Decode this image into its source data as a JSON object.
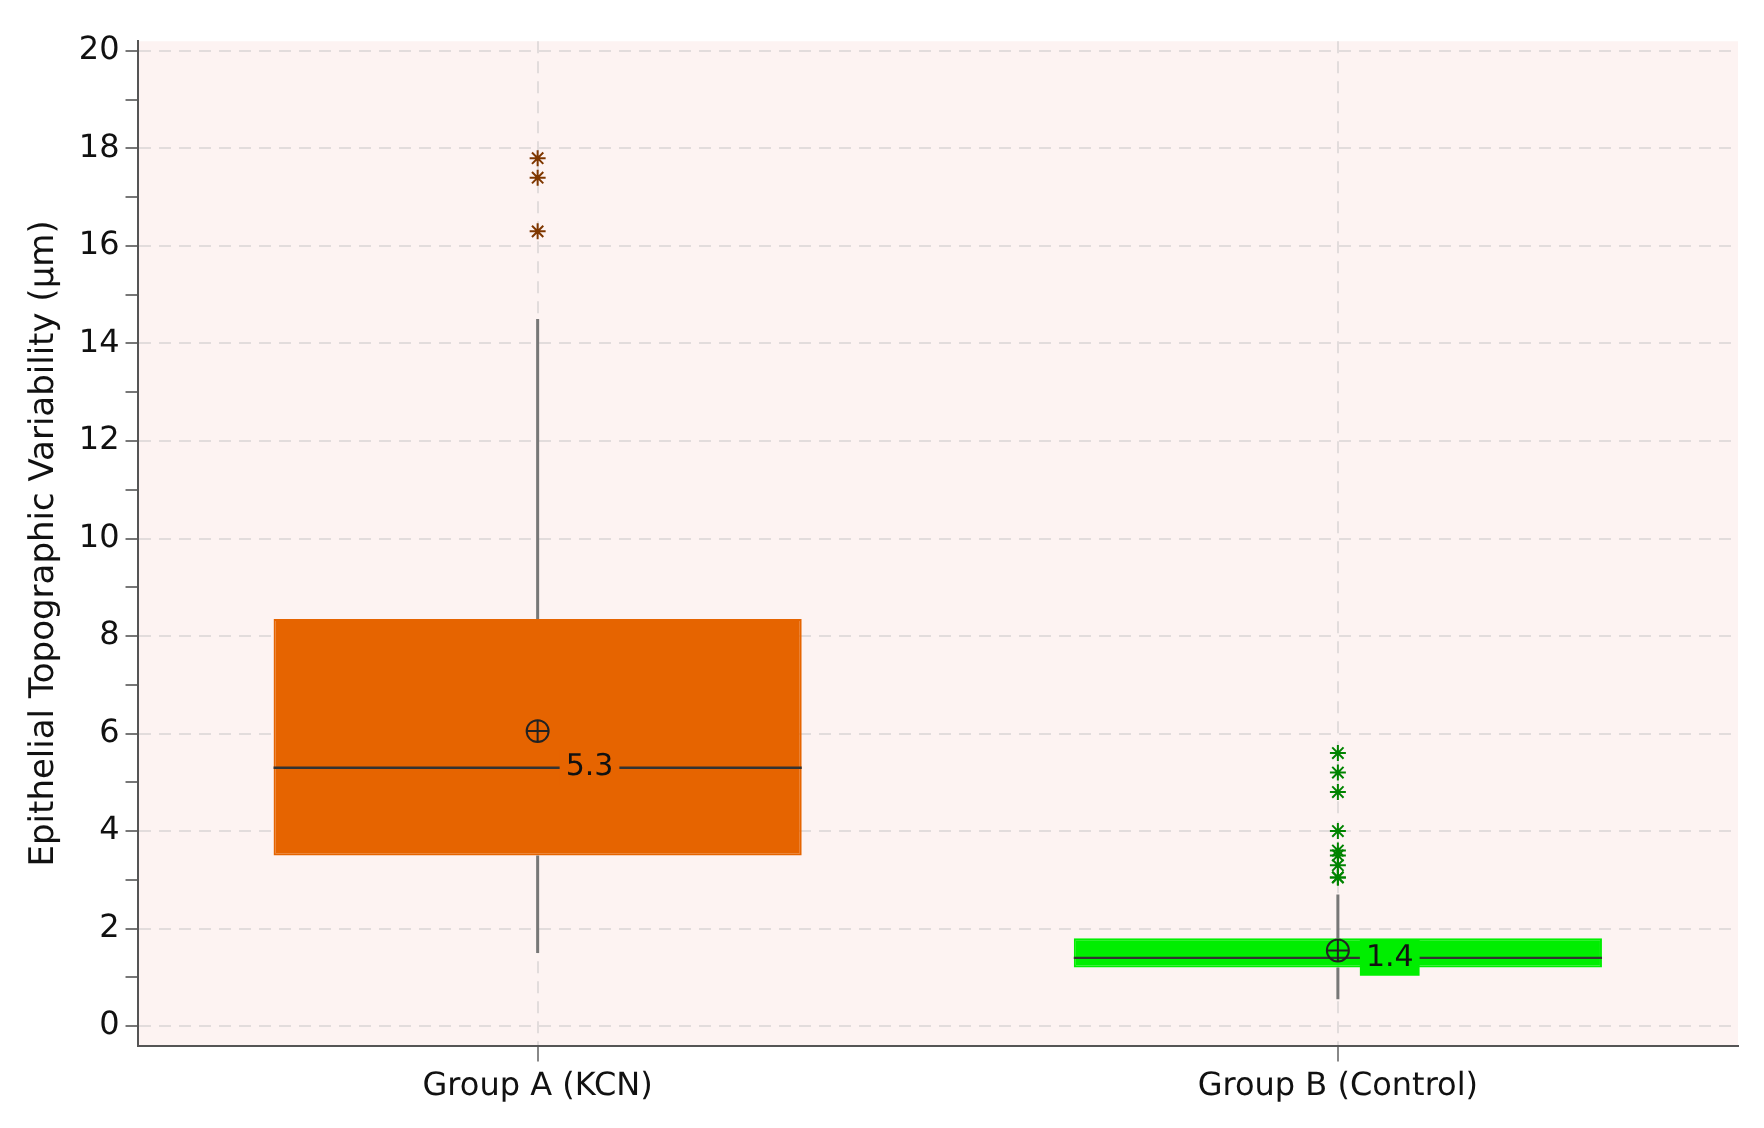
{
  "chart_data": {
    "type": "box",
    "ylabel": "Epithelial Topographic Variability (µm)",
    "categories": [
      "Group A (KCN)",
      "Group B (Control)"
    ],
    "colors": [
      "#e66400",
      "#00ee00"
    ],
    "boxes": [
      {
        "low": 1.5,
        "q1": 3.5,
        "median": 5.3,
        "q3": 8.35,
        "high": 14.5,
        "mean": 6.05,
        "outliers": [
          16.3,
          17.4,
          17.8
        ]
      },
      {
        "low": 0.55,
        "q1": 1.2,
        "median": 1.4,
        "q3": 1.8,
        "high": 2.7,
        "mean": 1.55,
        "outliers": [
          3.05,
          3.05,
          3.3,
          3.5,
          3.6,
          4.0,
          4.8,
          5.2,
          5.6
        ]
      }
    ],
    "ylim": [
      -0.4,
      20.2
    ],
    "yticks": [
      0,
      {
        "value": 1,
        "label": null
      },
      2,
      {
        "value": 3,
        "label": null
      },
      4,
      {
        "value": 5,
        "label": null
      },
      6,
      {
        "value": 7,
        "label": null
      },
      8,
      {
        "value": 9,
        "label": null
      },
      10,
      {
        "value": 11,
        "label": null
      },
      12,
      {
        "value": 13,
        "label": null
      },
      14,
      {
        "value": 15,
        "label": null
      },
      16,
      {
        "value": 17,
        "label": null
      },
      18,
      {
        "value": 19,
        "label": null
      },
      20
    ],
    "annotations": [
      {
        "text": "5.3",
        "x": "Group A (KCN)",
        "y": 5.3
      },
      {
        "text": "1.4",
        "x": "Group B (Control)",
        "y": 1.4
      }
    ],
    "grid": true
  }
}
